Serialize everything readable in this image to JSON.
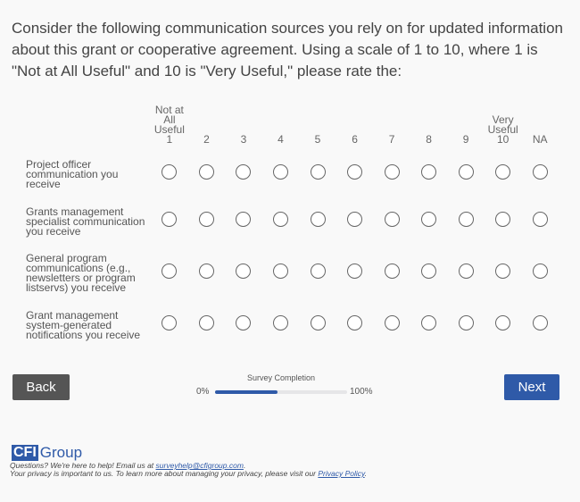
{
  "question": "Consider the following communication sources you rely on for updated information about this grant or cooperative agreement. Using a scale of 1 to 10, where 1 is \"Not at All Useful\" and 10 is \"Very Useful,\" please rate the:",
  "scale": {
    "columns": [
      {
        "top": "Not at All",
        "mid": "Useful",
        "value": "1"
      },
      {
        "top": "",
        "mid": "",
        "value": "2"
      },
      {
        "top": "",
        "mid": "",
        "value": "3"
      },
      {
        "top": "",
        "mid": "",
        "value": "4"
      },
      {
        "top": "",
        "mid": "",
        "value": "5"
      },
      {
        "top": "",
        "mid": "",
        "value": "6"
      },
      {
        "top": "",
        "mid": "",
        "value": "7"
      },
      {
        "top": "",
        "mid": "",
        "value": "8"
      },
      {
        "top": "",
        "mid": "",
        "value": "9"
      },
      {
        "top": "Very",
        "mid": "Useful",
        "value": "10"
      },
      {
        "top": "",
        "mid": "",
        "value": "NA"
      }
    ]
  },
  "rows": [
    {
      "label": "Project officer communication you receive",
      "selected": null
    },
    {
      "label": "Grants management specialist communication you receive",
      "selected": null
    },
    {
      "label": "General program communications (e.g., newsletters or program listservs) you receive",
      "selected": null
    },
    {
      "label": "Grant management system-generated notifications you receive",
      "selected": null
    }
  ],
  "nav": {
    "back_label": "Back",
    "next_label": "Next"
  },
  "progress": {
    "title": "Survey Completion",
    "min_label": "0%",
    "max_label": "100%",
    "percent": 47
  },
  "footer": {
    "logo": "CFI Group",
    "line1_prefix": "Questions? We're here to help! Email us at ",
    "email": "surveyhelp@cfigroup.com",
    "line1_suffix": ".",
    "line2_prefix": "Your privacy is important to us. To learn more about managing your privacy, please visit our ",
    "privacy_link": "Privacy Policy",
    "line2_suffix": "."
  },
  "colors": {
    "accent": "#2f5aa8",
    "back_button": "#555555"
  }
}
